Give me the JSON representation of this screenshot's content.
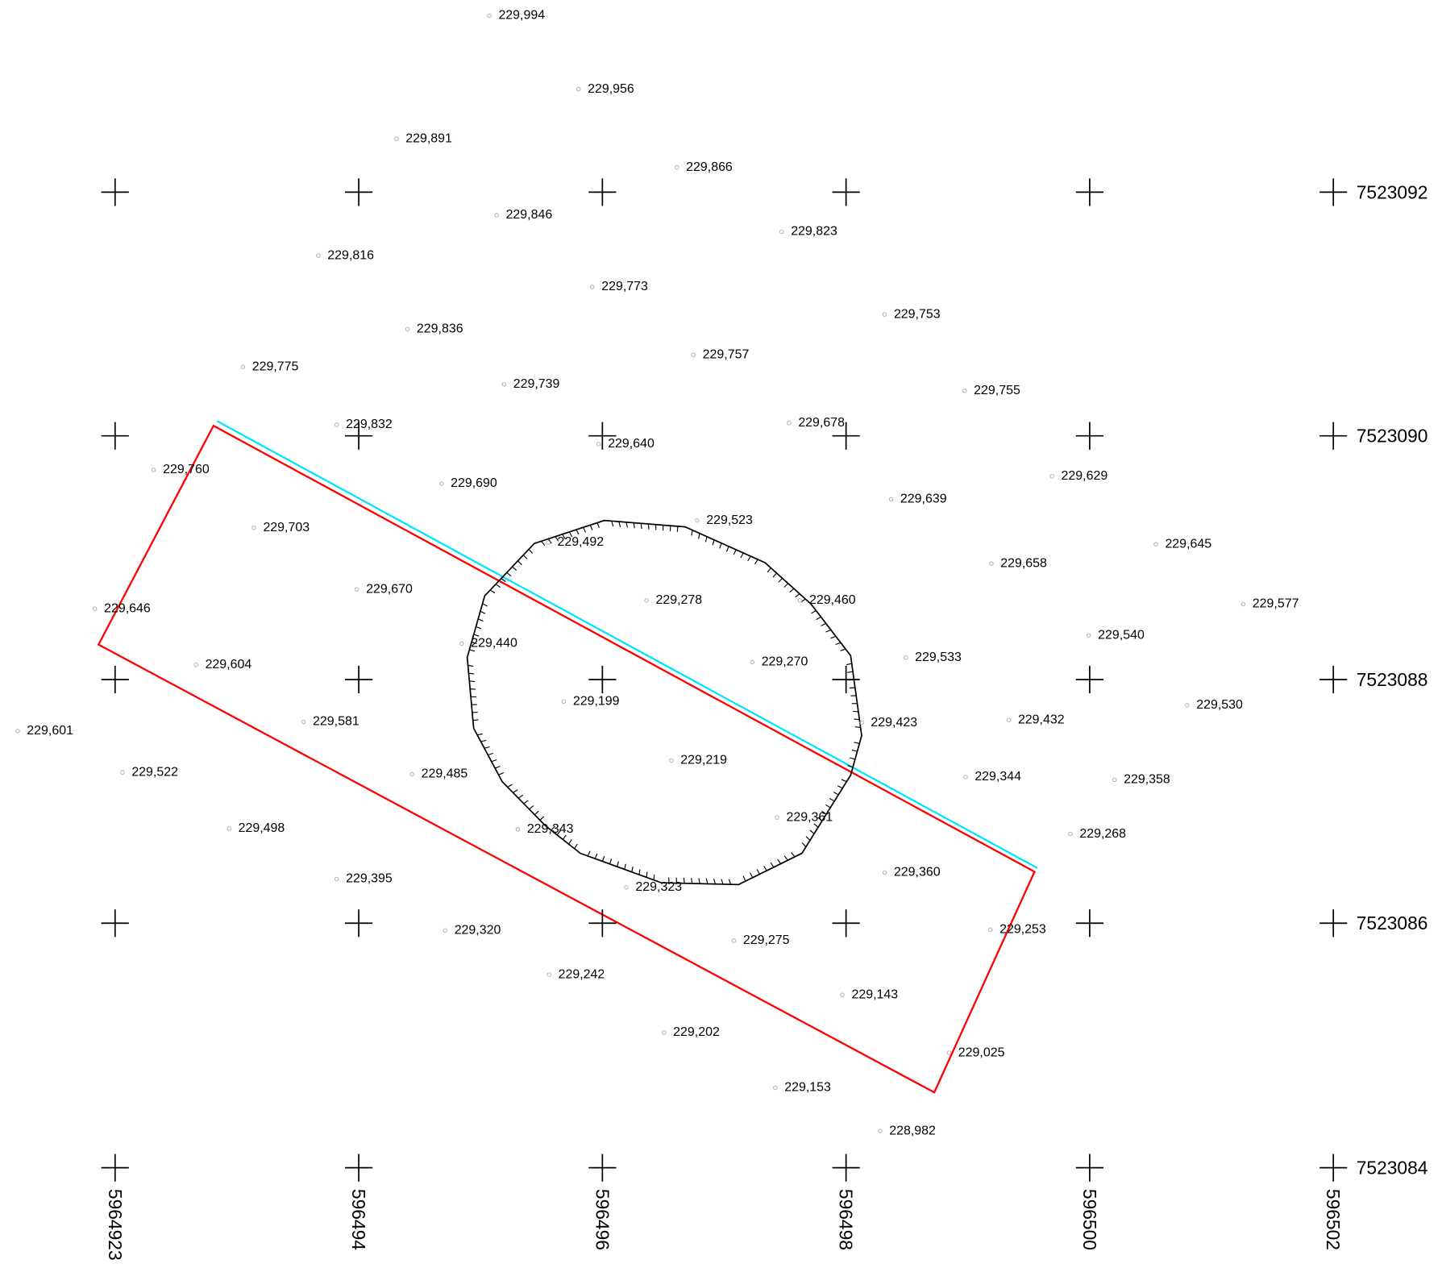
{
  "grid": {
    "x_labels": [
      "5964923",
      "596494",
      "596496",
      "596498",
      "596500",
      "596502"
    ],
    "y_labels": [
      "7523092",
      "7523090",
      "7523088",
      "7523086",
      "7523084"
    ]
  },
  "spot_heights": [
    "229,994",
    "229,956",
    "229,891",
    "229,866",
    "229,846",
    "229,823",
    "229,816",
    "229,773",
    "229,753",
    "229,836",
    "229,757",
    "229,775",
    "229,739",
    "229,755",
    "229,832",
    "229,678",
    "229,640",
    "229,760",
    "229,690",
    "229,629",
    "229,639",
    "229,703",
    "229,523",
    "229,492",
    "229,645",
    "229,658",
    "229,670",
    "229,646",
    "229,278",
    "229,460",
    "229,577",
    "229,540",
    "229,440",
    "229,533",
    "229,604",
    "229,270",
    "229,199",
    "229,530",
    "229,423",
    "229,432",
    "229,581",
    "229,601",
    "229,219",
    "229,522",
    "229,485",
    "229,344",
    "229,358",
    "229,361",
    "229,498",
    "229,343",
    "229,268",
    "229,360",
    "229,395",
    "229,323",
    "229,253",
    "229,320",
    "229,275",
    "229,242",
    "229,143",
    "229,202",
    "229,025",
    "229,153",
    "228,982"
  ]
}
